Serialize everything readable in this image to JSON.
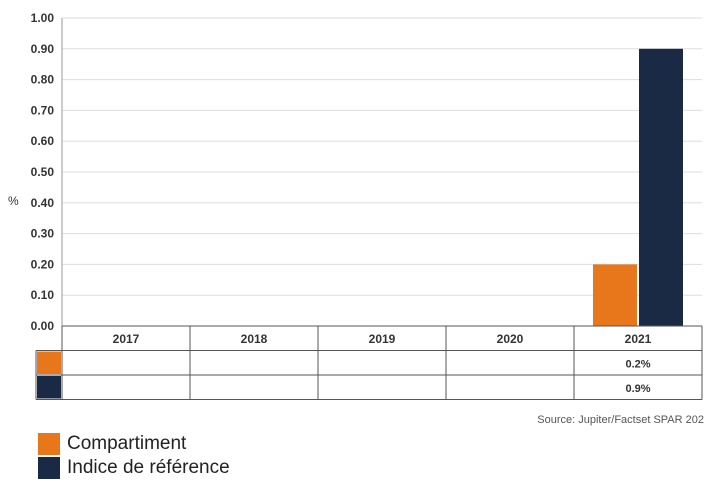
{
  "chart_data": {
    "type": "bar",
    "categories": [
      "2017",
      "2018",
      "2019",
      "2020",
      "2021"
    ],
    "series": [
      {
        "name": "Compartiment",
        "values": [
          null,
          null,
          null,
          null,
          0.2
        ],
        "table_labels": [
          "",
          "",
          "",
          "",
          "0.2%"
        ],
        "color": "#e8761a"
      },
      {
        "name": "Indice de référence",
        "values": [
          null,
          null,
          null,
          null,
          0.9
        ],
        "table_labels": [
          "",
          "",
          "",
          "",
          "0.9%"
        ],
        "color": "#1b2a44"
      }
    ],
    "ylabel": "%",
    "ylim": [
      0,
      1.0
    ],
    "yticks": [
      "0.00",
      "0.10",
      "0.20",
      "0.30",
      "0.40",
      "0.50",
      "0.60",
      "0.70",
      "0.80",
      "0.90",
      "1.00"
    ],
    "grid": true,
    "legend_position": "bottom-left"
  },
  "source": "Source: Jupiter/Factset SPAR 202"
}
